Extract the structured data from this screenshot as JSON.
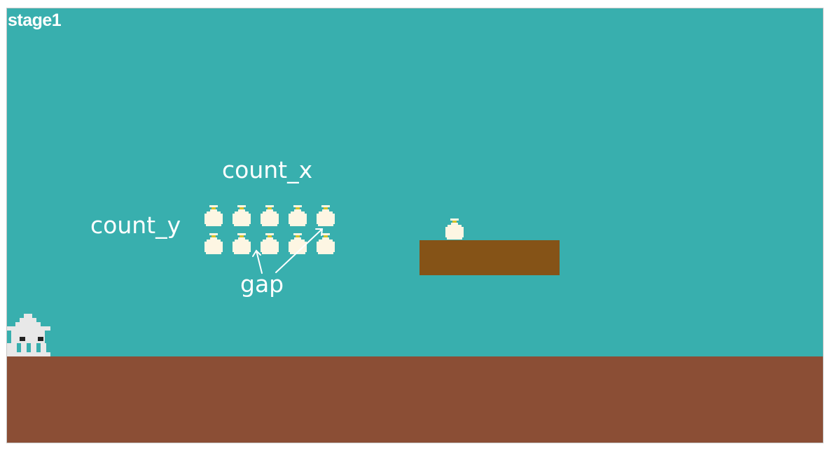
{
  "stage": {
    "title": "stage1",
    "colors": {
      "sky": "#38afae",
      "ground": "#8b4e35",
      "platform": "#855317",
      "coin": "#fdf6e3",
      "coin_cap": "#d4c22a",
      "player": "#e8e8e8",
      "player_eyes": "#222222"
    }
  },
  "labels": {
    "count_x": "count_x",
    "count_y": "count_y",
    "gap": "gap"
  },
  "coin_grid": {
    "columns": 5,
    "rows": 2
  },
  "sprites": {
    "coin_icon": "money-bag-icon",
    "player_icon": "pixel-squid-icon"
  }
}
